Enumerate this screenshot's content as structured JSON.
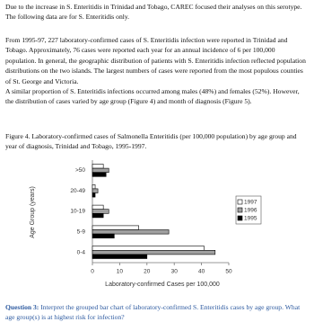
{
  "paragraphs": [
    "Due to the increase in S. Enteritidis in Trinidad and Tobago, CAREC focused their analyses on this serotype. The following data are for S. Enteritidis only.",
    "From 1995-97, 227 laboratory-confirmed cases of S. Enteritidis infection were reported in Trinidad and Tobago. Approximately, 76 cases were reported each year for an annual incidence of 6 per 100,000 population. In general, the geographic distribution of patients with S. Enteritidis infection reflected population distributions on the two islands. The largest numbers of cases were reported from the most populous counties of St. George and Victoria.",
    "A similar proportion of S. Enteritidis infections occurred among males (48%) and females (52%). However, the distribution of cases varied by age group (Figure 4) and month of diagnosis (Figure 5)."
  ],
  "figure_caption": "Figure 4. Laboratory-confirmed cases of Salmonella Enteritidis (per 100,000 population) by age group and year of diagnosis, Trinidad and Tobago, 1995-1997.",
  "question": {
    "label": "Question 3:",
    "text": "Interpret the grouped bar chart of laboratory-confirmed S. Enteritidis cases by age group. What age group(s) is at highest risk for infection?"
  },
  "chart_data": {
    "type": "hbar",
    "categories": [
      ">50",
      "20-49",
      "10-19",
      "5-9",
      "0-4"
    ],
    "series": [
      {
        "name": "1997",
        "color": "#ffffff",
        "values": [
          4,
          1,
          4,
          17,
          41
        ]
      },
      {
        "name": "1996",
        "color": "#a0a0a0",
        "values": [
          6,
          2,
          6,
          28,
          45
        ]
      },
      {
        "name": "1995",
        "color": "#000000",
        "values": [
          5,
          1,
          4,
          8,
          20
        ]
      }
    ],
    "xlim": [
      0,
      50
    ],
    "xticks": [
      0,
      10,
      20,
      30,
      40,
      50
    ],
    "xlabel": "Laboratory-confirmed Cases per 100,000",
    "ylabel": "Age Group (years)",
    "legend": "right"
  }
}
